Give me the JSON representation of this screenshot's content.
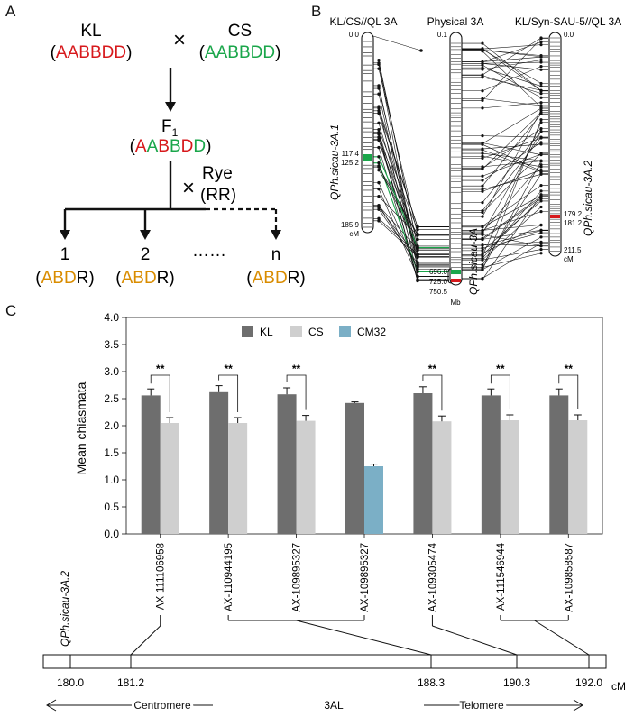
{
  "panels": {
    "a": "A",
    "b": "B",
    "c": "C"
  },
  "colors": {
    "red": "#d7191c",
    "green": "#1aa64a",
    "orange": "#d98c00",
    "kl": "#6e6e6e",
    "cs": "#cfcfcf",
    "cm32": "#7bafc6",
    "black": "#111111"
  },
  "panel_a": {
    "kl_label": "KL",
    "cs_label": "CS",
    "cross_symbol": "×",
    "genome_full": [
      "A",
      "A",
      "B",
      "B",
      "D",
      "D"
    ],
    "f1": "F",
    "f1_sub": "1",
    "f1_genome": [
      {
        "t": "A",
        "c": "red"
      },
      {
        "t": "A",
        "c": "green"
      },
      {
        "t": "B",
        "c": "red"
      },
      {
        "t": "B",
        "c": "green"
      },
      {
        "t": "D",
        "c": "red"
      },
      {
        "t": "D",
        "c": "green"
      }
    ],
    "rye": "Rye",
    "rye_genome": "(RR)",
    "progeny": [
      "1",
      "2",
      "n"
    ],
    "ellipsis": "……",
    "progeny_genome": [
      "A",
      "B",
      "D"
    ],
    "progeny_r": "R"
  },
  "panel_b": {
    "title_left": "KL/CS//QL 3A",
    "title_mid": "Physical 3A",
    "title_right": "KL/Syn-SAU-5//QL 3A",
    "left_ticks": [
      "0.0",
      "117.4",
      "125.2",
      "185.9"
    ],
    "left_unit": "cM",
    "mid_ticks": [
      "0.1",
      "696.0",
      "725.0",
      "750.5"
    ],
    "mid_unit": "Mb",
    "right_ticks": [
      "0.0",
      "179.2",
      "181.2",
      "211.5"
    ],
    "right_unit": "cM",
    "qtl_left": "QPh.sicau-3A.1",
    "qtl_mid": "QPh.sicau-3A",
    "qtl_right": "QPh.sicau-3A.2"
  },
  "panel_c": {
    "chart_data": {
      "type": "bar",
      "ylabel": "Mean chiasmata",
      "ylim": [
        0,
        4.0
      ],
      "yticks": [
        "0.0",
        "0.5",
        "1.0",
        "1.5",
        "2.0",
        "2.5",
        "3.0",
        "3.5",
        "4.0"
      ],
      "legend": [
        "KL",
        "CS",
        "CM32"
      ],
      "categories": [
        "AX-111106958",
        "AX-110944195",
        "AX-109895327",
        "AX-109895327",
        "AX-109305474",
        "AX-111546944",
        "AX-109858587"
      ],
      "series": [
        {
          "name": "KL",
          "values": [
            2.56,
            2.62,
            2.58,
            2.42,
            2.6,
            2.56,
            2.56
          ],
          "errors": [
            0.12,
            0.12,
            0.12,
            0.02,
            0.12,
            0.12,
            0.12
          ]
        },
        {
          "name": "CS",
          "values": [
            2.05,
            2.05,
            2.09,
            null,
            2.08,
            2.1,
            2.1
          ],
          "errors": [
            0.1,
            0.1,
            0.1,
            null,
            0.1,
            0.1,
            0.1
          ]
        },
        {
          "name": "CM32",
          "values": [
            null,
            null,
            null,
            1.25,
            null,
            null,
            null
          ],
          "errors": [
            null,
            null,
            null,
            0.04,
            null,
            null,
            null
          ]
        }
      ],
      "significance": [
        "**",
        "**",
        "**",
        "",
        "**",
        "**",
        "**"
      ]
    },
    "map": {
      "qtl": "QPh.sicau-3A.2",
      "positions": [
        "180.0",
        "181.2",
        "188.3",
        "190.3",
        "192.0"
      ],
      "unit": "cM",
      "centromere": "Centromere",
      "arm": "3AL",
      "telomere": "Telomere"
    }
  }
}
